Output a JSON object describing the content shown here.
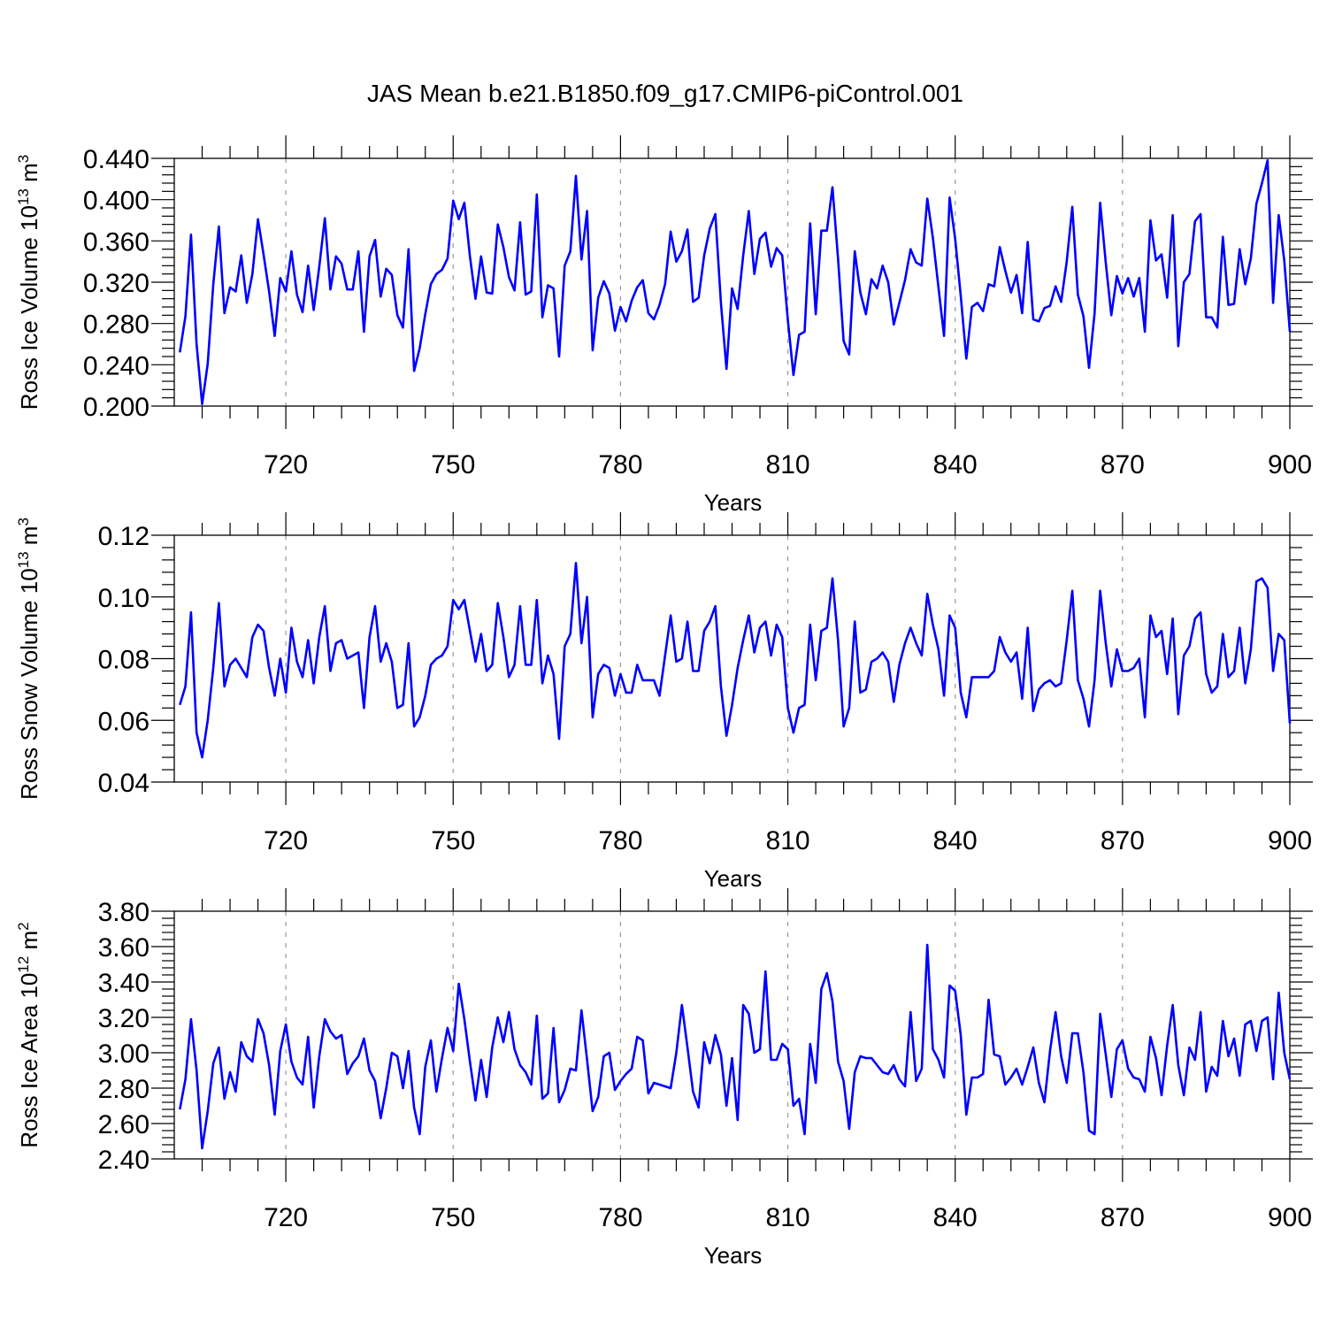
{
  "title": "JAS Mean b.e21.B1850.f09_g17.CMIP6-piControl.001",
  "line_color": "#0000ff",
  "chart_data": [
    {
      "type": "line",
      "name": "ross-ice-volume",
      "ylabel": "Ross Ice Volume 10",
      "ylabel_exp": "13",
      "ylabel_unit": " m",
      "ylabel_unit_exp": "3",
      "xlabel": "Years",
      "xlim": [
        700,
        900
      ],
      "ylim": [
        0.2,
        0.44
      ],
      "xticks": [
        720,
        750,
        780,
        810,
        840,
        870,
        900
      ],
      "xtick_labels": [
        "720",
        "750",
        "780",
        "810",
        "840",
        "870",
        "900"
      ],
      "yticks": [
        0.2,
        0.24,
        0.28,
        0.32,
        0.36,
        0.4,
        0.44
      ],
      "ytick_labels": [
        "0.200",
        "0.240",
        "0.280",
        "0.320",
        "0.360",
        "0.400",
        "0.440"
      ],
      "x_start": 701,
      "values": [
        0.252,
        0.287,
        0.366,
        0.26,
        0.202,
        0.241,
        0.318,
        0.374,
        0.29,
        0.315,
        0.311,
        0.346,
        0.3,
        0.328,
        0.381,
        0.347,
        0.311,
        0.268,
        0.324,
        0.311,
        0.35,
        0.308,
        0.291,
        0.336,
        0.293,
        0.335,
        0.382,
        0.313,
        0.345,
        0.338,
        0.313,
        0.313,
        0.35,
        0.272,
        0.345,
        0.361,
        0.306,
        0.333,
        0.327,
        0.288,
        0.276,
        0.352,
        0.234,
        0.256,
        0.289,
        0.318,
        0.328,
        0.332,
        0.343,
        0.399,
        0.381,
        0.397,
        0.345,
        0.304,
        0.345,
        0.31,
        0.309,
        0.376,
        0.354,
        0.325,
        0.312,
        0.378,
        0.308,
        0.311,
        0.405,
        0.286,
        0.317,
        0.314,
        0.248,
        0.336,
        0.35,
        0.423,
        0.342,
        0.389,
        0.254,
        0.305,
        0.321,
        0.309,
        0.273,
        0.296,
        0.282,
        0.302,
        0.315,
        0.322,
        0.29,
        0.284,
        0.298,
        0.318,
        0.369,
        0.34,
        0.35,
        0.371,
        0.301,
        0.305,
        0.346,
        0.372,
        0.386,
        0.3,
        0.236,
        0.314,
        0.294,
        0.346,
        0.389,
        0.328,
        0.362,
        0.368,
        0.335,
        0.353,
        0.346,
        0.283,
        0.23,
        0.269,
        0.272,
        0.377,
        0.289,
        0.37,
        0.37,
        0.412,
        0.343,
        0.263,
        0.25,
        0.35,
        0.31,
        0.289,
        0.323,
        0.314,
        0.336,
        0.32,
        0.279,
        0.3,
        0.322,
        0.352,
        0.339,
        0.336,
        0.401,
        0.363,
        0.315,
        0.268,
        0.402,
        0.362,
        0.307,
        0.246,
        0.296,
        0.3,
        0.292,
        0.318,
        0.316,
        0.354,
        0.331,
        0.31,
        0.327,
        0.29,
        0.359,
        0.284,
        0.282,
        0.295,
        0.297,
        0.316,
        0.301,
        0.34,
        0.393,
        0.308,
        0.287,
        0.237,
        0.29,
        0.397,
        0.339,
        0.288,
        0.326,
        0.309,
        0.324,
        0.306,
        0.324,
        0.272,
        0.38,
        0.341,
        0.347,
        0.305,
        0.385,
        0.258,
        0.32,
        0.328,
        0.379,
        0.386,
        0.286,
        0.286,
        0.276,
        0.364,
        0.298,
        0.299,
        0.352,
        0.318,
        0.343,
        0.396,
        0.416,
        0.438,
        0.3,
        0.385,
        0.341,
        0.272
      ]
    },
    {
      "type": "line",
      "name": "ross-snow-volume",
      "ylabel": "Ross Snow Volume 10",
      "ylabel_exp": "13",
      "ylabel_unit": " m",
      "ylabel_unit_exp": "3",
      "xlabel": "Years",
      "xlim": [
        700,
        900
      ],
      "ylim": [
        0.04,
        0.12
      ],
      "xticks": [
        720,
        750,
        780,
        810,
        840,
        870,
        900
      ],
      "xtick_labels": [
        "720",
        "750",
        "780",
        "810",
        "840",
        "870",
        "900"
      ],
      "yticks": [
        0.04,
        0.06,
        0.08,
        0.1,
        0.12
      ],
      "ytick_labels": [
        "0.04",
        "0.06",
        "0.08",
        "0.10",
        "0.12"
      ],
      "x_start": 701,
      "values": [
        0.065,
        0.071,
        0.095,
        0.056,
        0.048,
        0.06,
        0.077,
        0.098,
        0.071,
        0.078,
        0.08,
        0.077,
        0.074,
        0.087,
        0.091,
        0.089,
        0.077,
        0.068,
        0.08,
        0.069,
        0.09,
        0.079,
        0.074,
        0.086,
        0.072,
        0.087,
        0.097,
        0.076,
        0.085,
        0.086,
        0.08,
        0.081,
        0.082,
        0.064,
        0.087,
        0.097,
        0.079,
        0.085,
        0.079,
        0.064,
        0.065,
        0.085,
        0.058,
        0.061,
        0.068,
        0.078,
        0.08,
        0.081,
        0.084,
        0.099,
        0.096,
        0.099,
        0.089,
        0.079,
        0.088,
        0.076,
        0.078,
        0.098,
        0.087,
        0.074,
        0.078,
        0.097,
        0.078,
        0.078,
        0.099,
        0.072,
        0.081,
        0.075,
        0.054,
        0.084,
        0.088,
        0.111,
        0.085,
        0.1,
        0.061,
        0.075,
        0.078,
        0.077,
        0.068,
        0.075,
        0.069,
        0.069,
        0.078,
        0.073,
        0.073,
        0.073,
        0.068,
        0.081,
        0.094,
        0.079,
        0.08,
        0.092,
        0.076,
        0.076,
        0.089,
        0.092,
        0.097,
        0.071,
        0.055,
        0.065,
        0.077,
        0.086,
        0.094,
        0.082,
        0.09,
        0.092,
        0.081,
        0.091,
        0.087,
        0.064,
        0.056,
        0.064,
        0.065,
        0.091,
        0.073,
        0.089,
        0.09,
        0.106,
        0.086,
        0.058,
        0.064,
        0.092,
        0.069,
        0.07,
        0.079,
        0.08,
        0.082,
        0.079,
        0.066,
        0.078,
        0.085,
        0.09,
        0.085,
        0.081,
        0.101,
        0.091,
        0.083,
        0.068,
        0.094,
        0.09,
        0.069,
        0.061,
        0.074,
        0.074,
        0.074,
        0.074,
        0.076,
        0.087,
        0.082,
        0.079,
        0.082,
        0.067,
        0.09,
        0.063,
        0.07,
        0.072,
        0.073,
        0.071,
        0.072,
        0.086,
        0.102,
        0.073,
        0.067,
        0.058,
        0.073,
        0.102,
        0.085,
        0.071,
        0.083,
        0.076,
        0.076,
        0.077,
        0.08,
        0.061,
        0.094,
        0.087,
        0.089,
        0.075,
        0.093,
        0.062,
        0.081,
        0.084,
        0.093,
        0.095,
        0.075,
        0.069,
        0.071,
        0.088,
        0.074,
        0.076,
        0.09,
        0.072,
        0.083,
        0.105,
        0.106,
        0.103,
        0.076,
        0.088,
        0.086,
        0.059
      ]
    },
    {
      "type": "line",
      "name": "ross-ice-area",
      "ylabel": "Ross Ice Area 10",
      "ylabel_exp": "12",
      "ylabel_unit": " m",
      "ylabel_unit_exp": "2",
      "xlabel": "Years",
      "xlim": [
        700,
        900
      ],
      "ylim": [
        2.4,
        3.8
      ],
      "xticks": [
        720,
        750,
        780,
        810,
        840,
        870,
        900
      ],
      "xtick_labels": [
        "720",
        "750",
        "780",
        "810",
        "840",
        "870",
        "900"
      ],
      "yticks": [
        2.4,
        2.6,
        2.8,
        3.0,
        3.2,
        3.4,
        3.6,
        3.8
      ],
      "ytick_labels": [
        "2.40",
        "2.60",
        "2.80",
        "3.00",
        "3.20",
        "3.40",
        "3.60",
        "3.80"
      ],
      "x_start": 701,
      "values": [
        2.68,
        2.85,
        3.19,
        2.9,
        2.46,
        2.67,
        2.94,
        3.03,
        2.74,
        2.89,
        2.78,
        3.06,
        2.98,
        2.95,
        3.19,
        3.11,
        2.93,
        2.65,
        3.01,
        3.16,
        2.95,
        2.86,
        2.82,
        3.09,
        2.69,
        2.98,
        3.19,
        3.12,
        3.08,
        3.1,
        2.88,
        2.94,
        2.98,
        3.08,
        2.9,
        2.84,
        2.63,
        2.8,
        3.0,
        2.98,
        2.8,
        3.01,
        2.69,
        2.54,
        2.92,
        3.07,
        2.78,
        2.97,
        3.14,
        3.01,
        3.39,
        3.19,
        2.95,
        2.73,
        2.96,
        2.75,
        3.03,
        3.2,
        3.06,
        3.23,
        3.02,
        2.93,
        2.89,
        2.82,
        3.21,
        2.74,
        2.77,
        3.14,
        2.72,
        2.79,
        2.91,
        2.9,
        3.24,
        2.96,
        2.67,
        2.75,
        2.98,
        3.0,
        2.79,
        2.84,
        2.88,
        2.91,
        3.09,
        3.07,
        2.77,
        2.83,
        2.82,
        2.81,
        2.8,
        3.0,
        3.27,
        3.03,
        2.78,
        2.69,
        3.06,
        2.94,
        3.1,
        2.99,
        2.7,
        2.97,
        2.62,
        3.27,
        3.22,
        3.0,
        3.02,
        3.46,
        2.96,
        2.96,
        3.05,
        3.02,
        2.7,
        2.74,
        2.54,
        3.05,
        2.83,
        3.36,
        3.45,
        3.29,
        2.95,
        2.84,
        2.57,
        2.89,
        2.98,
        2.97,
        2.97,
        2.93,
        2.89,
        2.88,
        2.93,
        2.85,
        2.81,
        3.23,
        2.84,
        2.91,
        3.61,
        3.02,
        2.96,
        2.86,
        3.38,
        3.35,
        3.1,
        2.65,
        2.86,
        2.86,
        2.88,
        3.3,
        2.99,
        2.98,
        2.82,
        2.86,
        2.91,
        2.82,
        2.92,
        3.03,
        2.83,
        2.72,
        3.01,
        3.23,
        2.98,
        2.83,
        3.11,
        3.11,
        2.89,
        2.56,
        2.54,
        3.22,
        2.99,
        2.75,
        3.02,
        3.07,
        2.91,
        2.86,
        2.85,
        2.78,
        3.09,
        2.97,
        2.76,
        3.04,
        3.27,
        2.93,
        2.76,
        3.03,
        2.96,
        3.23,
        2.78,
        2.92,
        2.87,
        3.18,
        2.98,
        3.08,
        2.87,
        3.16,
        3.18,
        3.01,
        3.18,
        3.2,
        2.85,
        3.34,
        3.0,
        2.85
      ]
    }
  ]
}
